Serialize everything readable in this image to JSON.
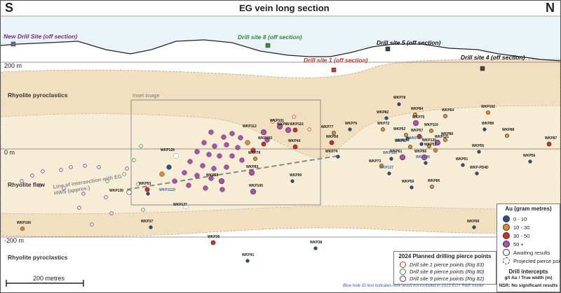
{
  "header": {
    "left": "S",
    "right": "N",
    "title": "EG vein long section"
  },
  "elevations": {
    "top": "200 m",
    "mid": "0 m",
    "bottom": "-200 m"
  },
  "units": {
    "upper": "Rhyolite pyroclastics",
    "middle": "Rhyolite flow",
    "lower": "Rhyolite pyroclastics"
  },
  "inset_label": "Inset image",
  "line_of_intersection": "Line of intersection with EG HWS (approx.)",
  "drill_sites": [
    {
      "label": "New Drill Site (off section)",
      "color": "#7b2a88"
    },
    {
      "label": "Drill site 8 (off section)",
      "color": "#2e8b3a"
    },
    {
      "label": "Drill site 1 (off section)",
      "color": "#d9302b"
    },
    {
      "label": "Drill site 5 (off section)",
      "color": "#111111"
    },
    {
      "label": "Drill site 4 (off section)",
      "color": "#111111"
    }
  ],
  "scale_bar": "200 metres",
  "legend_au": {
    "title": "Au (gram metres)",
    "items": [
      {
        "label": "0 - 10",
        "color": "#2a4f8a"
      },
      {
        "label": "10 - 30",
        "color": "#e28b2e"
      },
      {
        "label": "30 - 50",
        "color": "#d22c25"
      },
      {
        "label": "50 +",
        "color": "#b04fb0"
      },
      {
        "label": "Awaiting results",
        "color": "#ffffff"
      },
      {
        "label": "Projected pierce point",
        "color": "#ffffff"
      }
    ],
    "intercepts_title": "Drill intercepts",
    "intercepts_units": "g/t Au / True width (m)",
    "nsr": "NSR: No significant results"
  },
  "legend_planned": {
    "title": "2024 Planned drilling pierce points",
    "items": [
      {
        "label": "Drill site 1 pierce points (Rig 83)",
        "color": "#d9302b"
      },
      {
        "label": "Drill site 8 pierce points (Rig 80)",
        "color": "#2e8b3a"
      },
      {
        "label": "Drill site 9 pierce points (Rig 82)",
        "color": "#7b2a88"
      }
    ]
  },
  "footnote": "Blue hole ID text indicates new result not included in 2023 EOY R&R model",
  "colors": {
    "zone_fill": "#f2dfbf",
    "sky": "#eaf3f8",
    "au_0_10": "#2a4f8a",
    "au_10_30": "#e28b2e",
    "au_30_50": "#d22c25",
    "au_50_plus": "#b04fb0"
  },
  "holes": [
    {
      "id": "WKP78",
      "cls": "0-10",
      "new": false
    },
    {
      "id": "WKP82",
      "cls": "0-10",
      "new": false
    },
    {
      "id": "WKP84",
      "cls": "10-30",
      "new": false
    },
    {
      "id": "WKP75",
      "cls": "50+",
      "new": false
    },
    {
      "id": "WKP64",
      "cls": "10-30",
      "new": false
    },
    {
      "id": "WKP102",
      "cls": "10-30",
      "new": false
    },
    {
      "id": "WKP119",
      "cls": "10-30",
      "new": false
    },
    {
      "id": "WKP76",
      "cls": "0-10",
      "new": false
    },
    {
      "id": "WKP72",
      "cls": "10-30",
      "new": false
    },
    {
      "id": "WKP62",
      "cls": "10-30",
      "new": false
    },
    {
      "id": "WKP122",
      "cls": "0-10",
      "new": true
    },
    {
      "id": "WKP57",
      "cls": "30-50",
      "new": false
    },
    {
      "id": "WKP80",
      "cls": "10-30",
      "new": false
    },
    {
      "id": "WKP89",
      "cls": "0-10",
      "new": false
    },
    {
      "id": "WKP88",
      "cls": "10-30",
      "new": false
    },
    {
      "id": "WKP87",
      "cls": "30-50",
      "new": false
    },
    {
      "id": "WKP50",
      "cls": "30-50",
      "new": false
    },
    {
      "id": "WKP67",
      "cls": "10-30",
      "new": false
    },
    {
      "id": "WKP123",
      "cls": "0-10",
      "new": true
    },
    {
      "id": "WKP121",
      "cls": "50+",
      "new": false
    },
    {
      "id": "WKP120",
      "cls": "10-30",
      "new": false
    },
    {
      "id": "WKP52",
      "cls": "10-30",
      "new": false
    },
    {
      "id": "WKP55",
      "cls": "0-10",
      "new": false
    },
    {
      "id": "WKP61",
      "cls": "50+",
      "new": false
    },
    {
      "id": "WKP125",
      "cls": "0-10",
      "new": true
    },
    {
      "id": "WKP66",
      "cls": "50+",
      "new": false
    },
    {
      "id": "WKP73",
      "cls": "10-30",
      "new": false
    },
    {
      "id": "WKP136",
      "cls": "0-10",
      "new": true
    },
    {
      "id": "WKP91",
      "cls": "0-10",
      "new": false
    },
    {
      "id": "WKP56",
      "cls": "0-10",
      "new": false
    },
    {
      "id": "WKP-PD4D",
      "cls": "0-10",
      "new": false
    },
    {
      "id": "WKP127",
      "cls": "0-10",
      "new": true
    },
    {
      "id": "WKP59",
      "cls": "0-10",
      "new": false
    },
    {
      "id": "WKP85",
      "cls": "10-30",
      "new": false
    },
    {
      "id": "WKP74",
      "cls": "0-10",
      "new": false
    },
    {
      "id": "WKP90",
      "cls": "0-10",
      "new": false
    },
    {
      "id": "WKP99",
      "cls": "0-10",
      "new": false
    },
    {
      "id": "WKP100",
      "cls": "10-30",
      "new": false
    },
    {
      "id": "WKP37",
      "cls": "0-10",
      "new": false
    },
    {
      "id": "WKP35",
      "cls": "30-50",
      "new": false
    },
    {
      "id": "WKP38",
      "cls": "0-10",
      "new": false
    },
    {
      "id": "WKP41",
      "cls": "0-10",
      "new": false
    },
    {
      "id": "WKP116",
      "cls": "30-50",
      "new": false
    },
    {
      "id": "WKP44",
      "cls": "30-50",
      "new": false
    },
    {
      "id": "WKP77",
      "cls": "10-30",
      "new": false
    },
    {
      "id": "WKP86",
      "cls": "50+",
      "new": false
    },
    {
      "id": "WKP101",
      "cls": "50+",
      "new": false
    },
    {
      "id": "WKP112",
      "cls": "50+",
      "new": false
    },
    {
      "id": "WKP103",
      "cls": "30-50",
      "new": false
    },
    {
      "id": "WKP79",
      "cls": "10-30",
      "new": false
    },
    {
      "id": "WKP105",
      "cls": "50+",
      "new": false
    },
    {
      "id": "WKP83",
      "cls": "50+",
      "new": false
    },
    {
      "id": "WKP58",
      "cls": "50+",
      "new": false
    },
    {
      "id": "WKP111D",
      "cls": "0-10",
      "new": true
    },
    {
      "id": "WKP53",
      "cls": "30-50",
      "new": false
    },
    {
      "id": "WKP130",
      "cls": "await",
      "new": false
    },
    {
      "id": "WKP131",
      "cls": "proj",
      "new": false
    },
    {
      "id": "WKP126",
      "cls": "proj",
      "new": false
    }
  ]
}
